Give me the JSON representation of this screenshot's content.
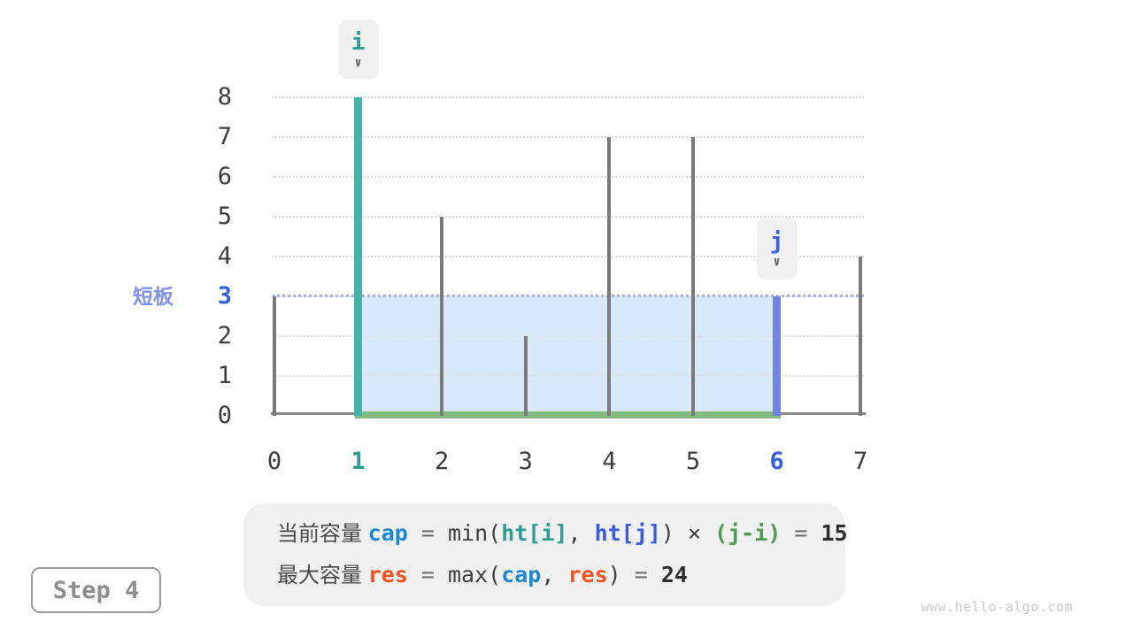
{
  "page": {
    "step_label": "Step 4",
    "watermark": "www.hello-algo.com"
  },
  "pointers": {
    "i": {
      "label": "i",
      "index": 1
    },
    "j": {
      "label": "j",
      "index": 6
    },
    "arrow_icon": "∨"
  },
  "short_board": {
    "label": "短板",
    "value": 3
  },
  "chart_data": {
    "type": "bar",
    "title": "",
    "xlabel": "",
    "ylabel": "",
    "x_ticks": [
      0,
      1,
      2,
      3,
      4,
      5,
      6,
      7
    ],
    "y_ticks": [
      0,
      1,
      2,
      3,
      4,
      5,
      6,
      7,
      8
    ],
    "ylim": [
      0,
      8
    ],
    "grid": true,
    "categories": [
      0,
      1,
      2,
      3,
      4,
      5,
      6,
      7
    ],
    "values": [
      3,
      8,
      5,
      2,
      7,
      7,
      3,
      4
    ],
    "i_index": 1,
    "j_index": 6,
    "water_level": 3,
    "current_capacity": 15,
    "max_capacity": 24,
    "colors": {
      "bar_gray": "#7a7a7a",
      "bar_i": "#45b2a8",
      "bar_j": "#7185e2",
      "water": "#d8eafa",
      "width_line": "#83ba7f",
      "short_line": "#a6b4ec",
      "tick_i": "#2f9e92",
      "tick_j": "#3560de"
    }
  },
  "formulas": {
    "line1": [
      {
        "t": "当前容量 ",
        "cls": "cjk"
      },
      {
        "t": "cap",
        "cls": "c-azure bold"
      },
      {
        "t": " = ",
        "cls": "c-mid"
      },
      {
        "t": "min(",
        "cls": "c-dark"
      },
      {
        "t": "ht[i]",
        "cls": "c-teal bold"
      },
      {
        "t": ", ",
        "cls": "c-dark"
      },
      {
        "t": "ht[j]",
        "cls": "c-royal bold"
      },
      {
        "t": ") × ",
        "cls": "c-dark"
      },
      {
        "t": "(j-i)",
        "cls": "c-green bold"
      },
      {
        "t": " = ",
        "cls": "c-mid"
      },
      {
        "t": "15",
        "cls": "c-result bold"
      }
    ],
    "line2": [
      {
        "t": "最大容量 ",
        "cls": "cjk"
      },
      {
        "t": "res",
        "cls": "c-orange bold"
      },
      {
        "t": " = ",
        "cls": "c-mid"
      },
      {
        "t": "max(",
        "cls": "c-dark"
      },
      {
        "t": "cap",
        "cls": "c-azure bold"
      },
      {
        "t": ", ",
        "cls": "c-dark"
      },
      {
        "t": "res",
        "cls": "c-orange bold"
      },
      {
        "t": ")",
        "cls": "c-dark"
      },
      {
        "t": " = ",
        "cls": "c-mid"
      },
      {
        "t": "24",
        "cls": "c-result bold"
      }
    ]
  }
}
